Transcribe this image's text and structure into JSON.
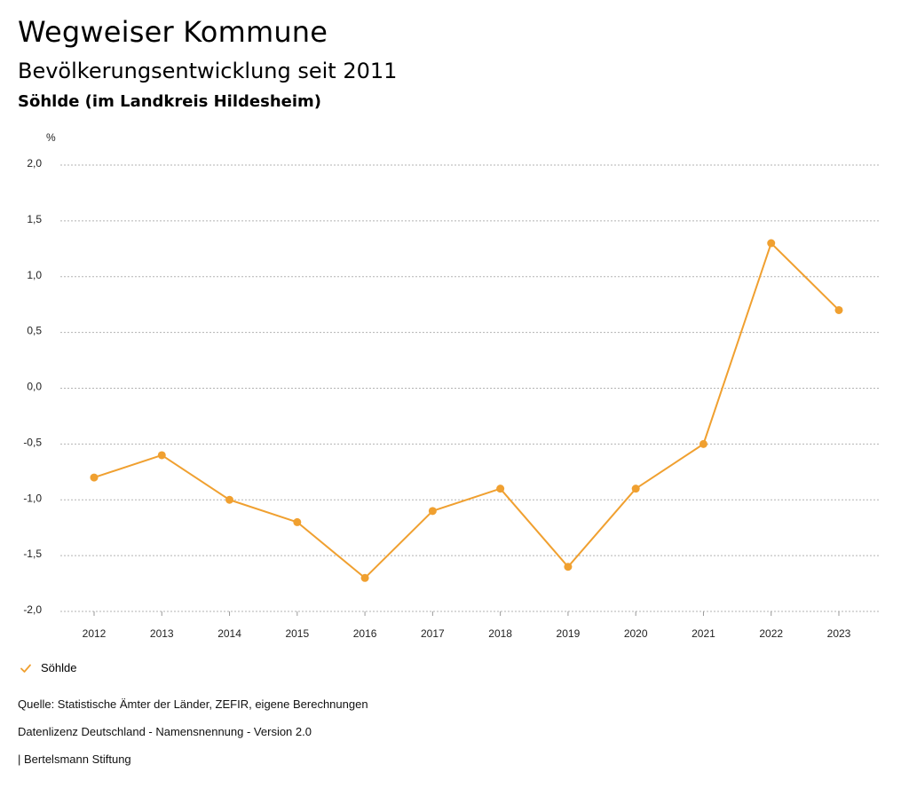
{
  "header": {
    "title": "Wegweiser Kommune",
    "subtitle": "Bevölkerungsentwicklung seit 2011",
    "region": "Söhlde (im Landkreis Hildesheim)"
  },
  "chart_data": {
    "type": "line",
    "title": "Bevölkerungsentwicklung seit 2011",
    "subtitle": "Söhlde (im Landkreis Hildesheim)",
    "xlabel": "",
    "ylabel": "%",
    "x": [
      "2012",
      "2013",
      "2014",
      "2015",
      "2016",
      "2017",
      "2018",
      "2019",
      "2020",
      "2021",
      "2022",
      "2023"
    ],
    "series": [
      {
        "name": "Söhlde",
        "color": "#f0a030",
        "values": [
          -0.8,
          -0.6,
          -1.0,
          -1.2,
          -1.7,
          -1.1,
          -0.9,
          -1.6,
          -0.9,
          -0.5,
          1.3,
          0.7
        ]
      }
    ],
    "ylim": [
      -2.0,
      2.0
    ],
    "yticks": [
      2.0,
      1.5,
      1.0,
      0.5,
      0.0,
      -0.5,
      -1.0,
      -1.5,
      -2.0
    ],
    "ytick_labels": [
      "2,0",
      "1,5",
      "1,0",
      "0,5",
      "0,0",
      "-0,5",
      "-1,0",
      "-1,5",
      "-2,0"
    ],
    "grid": true,
    "legend_position": "bottom-left"
  },
  "legend": {
    "label": "Söhlde",
    "color": "#f0a030"
  },
  "footer": {
    "source": "Quelle: Statistische Ämter der Länder, ZEFIR, eigene Berechnungen",
    "license": "Datenlizenz Deutschland - Namensnennung - Version 2.0",
    "credit": "| Bertelsmann Stiftung"
  }
}
